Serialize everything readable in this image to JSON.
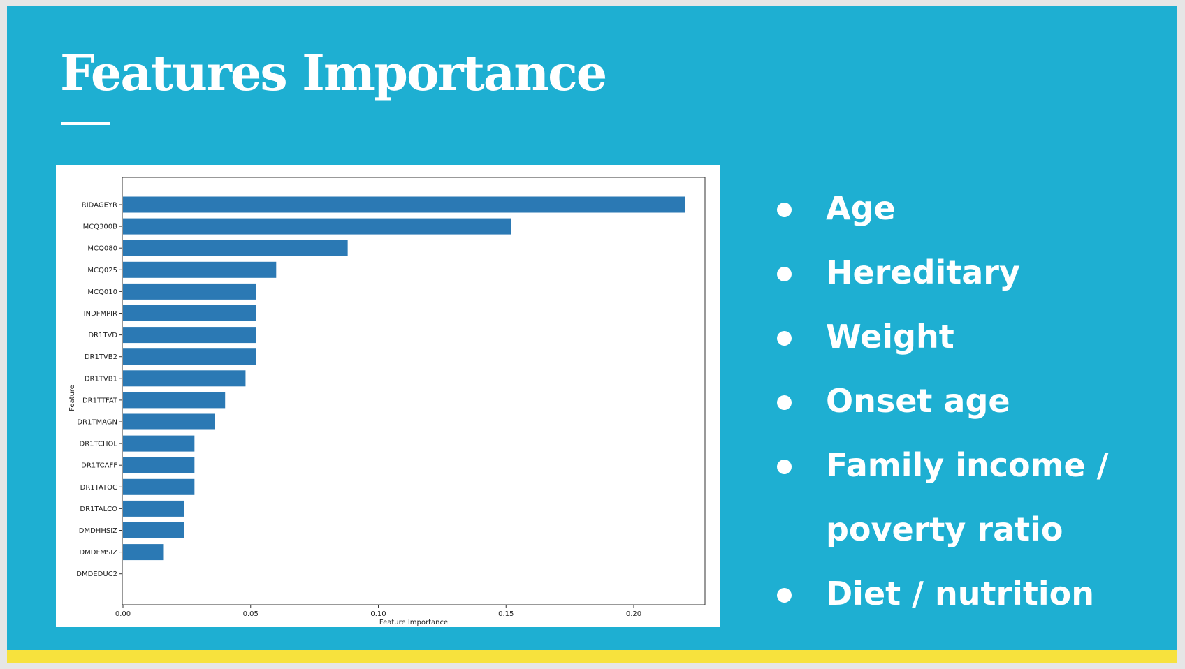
{
  "slide": {
    "title": "Features Importance",
    "bullets": [
      "Age",
      "Hereditary",
      "Weight",
      "Onset age",
      "Family income / poverty ratio",
      "Diet / nutrition"
    ]
  },
  "colors": {
    "background": "#1eafd2",
    "bar": "#2b79b4",
    "footer_bar": "#f7e23d",
    "text": "#ffffff"
  },
  "chart_data": {
    "type": "bar",
    "orientation": "horizontal",
    "title": "",
    "xlabel": "Feature Importance",
    "ylabel": "Feature",
    "xlim": [
      0,
      0.23
    ],
    "xticks": [
      "0.00",
      "0.05",
      "0.10",
      "0.15",
      "0.20"
    ],
    "xtick_values": [
      0,
      0.05,
      0.1,
      0.15,
      0.2
    ],
    "categories": [
      "RIDAGEYR",
      "MCQ300B",
      "MCQ080",
      "MCQ025",
      "MCQ010",
      "INDFMPIR",
      "DR1TVD",
      "DR1TVB2",
      "DR1TVB1",
      "DR1TTFAT",
      "DR1TMAGN",
      "DR1TCHOL",
      "DR1TCAFF",
      "DR1TATOC",
      "DR1TALCO",
      "DMDHHSIZ",
      "DMDFMSIZ",
      "DMDEDUC2"
    ],
    "values": [
      0.22,
      0.152,
      0.088,
      0.06,
      0.052,
      0.052,
      0.052,
      0.052,
      0.048,
      0.04,
      0.036,
      0.028,
      0.028,
      0.028,
      0.024,
      0.024,
      0.016,
      0.0
    ],
    "grid": false,
    "legend": "none"
  }
}
